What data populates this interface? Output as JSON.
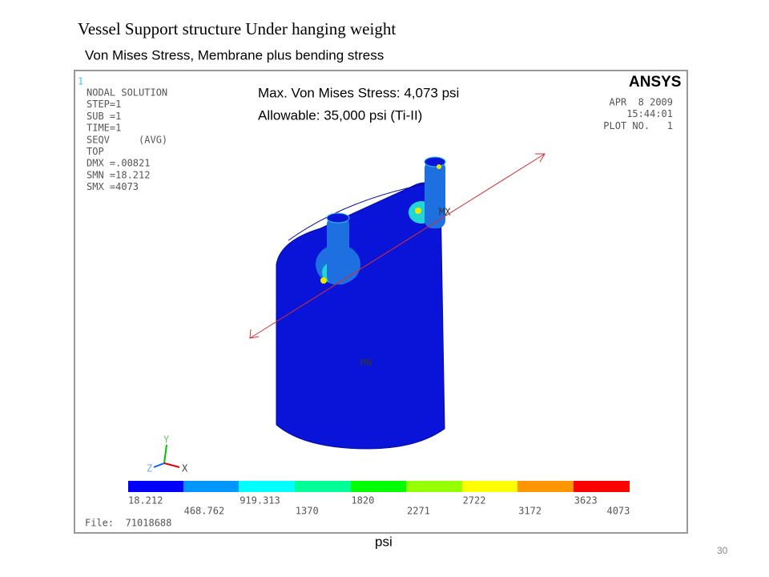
{
  "slide": {
    "title": "Vessel Support structure Under hanging weight",
    "subtitle": "Von Mises Stress, Membrane plus bending stress",
    "unit": "psi",
    "page_number": "30"
  },
  "plot": {
    "window_number": "1",
    "info_lines": [
      "NODAL SOLUTION",
      "STEP=1",
      "SUB =1",
      "TIME=1",
      "SEQV     (AVG)",
      "TOP",
      "DMX =.00821",
      "SMN =18.212",
      "SMX =4073"
    ],
    "annotation": [
      "Max. Von Mises Stress: 4,073 psi",
      "Allowable: 35,000 psi (Ti-II)"
    ],
    "logo": "ANSYS",
    "date_lines": [
      "APR  8 2009",
      "15:44:01",
      "PLOT NO.   1"
    ],
    "markers": {
      "max": "MX",
      "min": "MN"
    },
    "axes": {
      "y": "Y",
      "z": "Z",
      "x": "X"
    },
    "legend_labels": [
      "18.212",
      "468.762",
      "919.313",
      "1370",
      "1820",
      "2271",
      "2722",
      "3172",
      "3623",
      "4073"
    ],
    "file": "File:  71018688"
  }
}
